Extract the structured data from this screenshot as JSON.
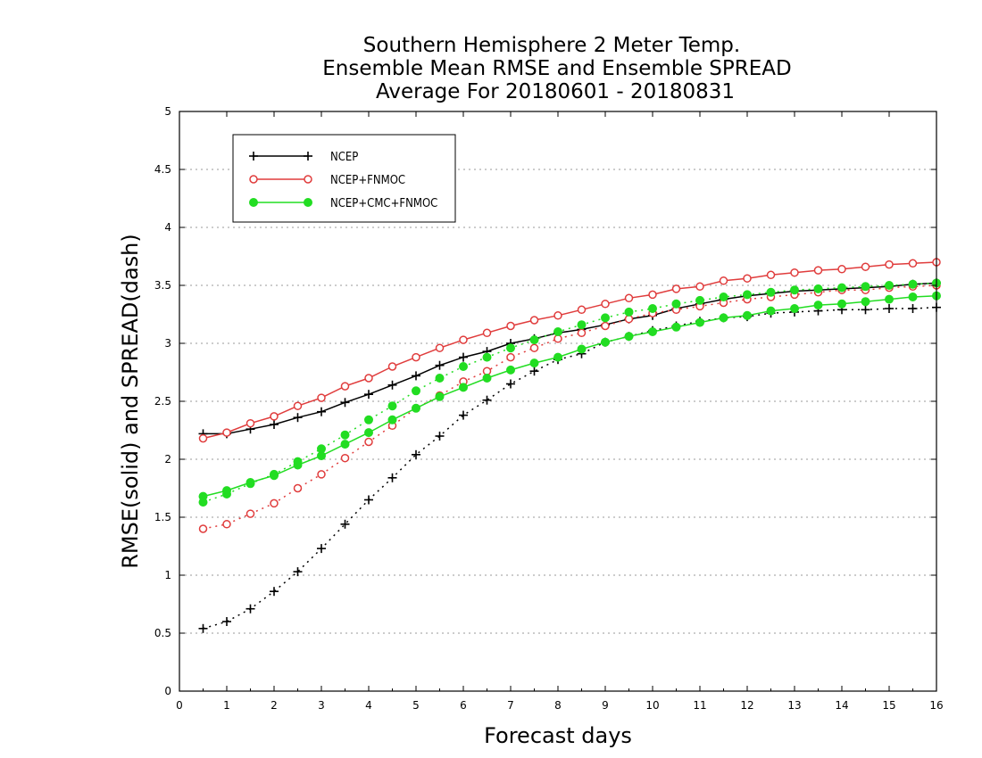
{
  "chart_data": {
    "type": "line",
    "title": [
      "Southern Hemisphere 2 Meter Temp.",
      "Ensemble Mean RMSE and Ensemble SPREAD",
      "Average For 20180601 - 20180831"
    ],
    "xlabel": "Forecast days",
    "ylabel": "RMSE(solid) and SPREAD(dash)",
    "xlim": [
      0,
      16
    ],
    "ylim": [
      0,
      5
    ],
    "x_ticks": [
      "0",
      "1",
      "2",
      "3",
      "4",
      "5",
      "6",
      "7",
      "8",
      "9",
      "10",
      "11",
      "12",
      "13",
      "14",
      "15",
      "16"
    ],
    "y_ticks": [
      "0",
      "0.5",
      "1",
      "1.5",
      "2",
      "2.5",
      "3",
      "3.5",
      "4",
      "4.5",
      "5"
    ],
    "grid": "horizontal dotted",
    "legend_placement": "top-left",
    "x": [
      0.5,
      1,
      1.5,
      2,
      2.5,
      3,
      3.5,
      4,
      4.5,
      5,
      5.5,
      6,
      6.5,
      7,
      7.5,
      8,
      8.5,
      9,
      9.5,
      10,
      10.5,
      11,
      11.5,
      12,
      12.5,
      13,
      13.5,
      14,
      14.5,
      15,
      15.5,
      16
    ],
    "series": [
      {
        "name": "NCEP",
        "color": "#000000",
        "marker": "plus",
        "rmse": [
          2.22,
          2.22,
          2.26,
          2.3,
          2.36,
          2.41,
          2.49,
          2.56,
          2.64,
          2.72,
          2.81,
          2.88,
          2.93,
          3.0,
          3.04,
          3.09,
          3.12,
          3.16,
          3.21,
          3.24,
          3.3,
          3.34,
          3.38,
          3.41,
          3.43,
          3.45,
          3.46,
          3.47,
          3.48,
          3.49,
          3.51,
          3.52
        ],
        "spread": [
          0.54,
          0.6,
          0.71,
          0.86,
          1.03,
          1.23,
          1.44,
          1.65,
          1.84,
          2.04,
          2.2,
          2.38,
          2.51,
          2.65,
          2.76,
          2.86,
          2.91,
          3.01,
          3.06,
          3.11,
          3.15,
          3.19,
          3.22,
          3.23,
          3.26,
          3.27,
          3.28,
          3.29,
          3.29,
          3.3,
          3.3,
          3.31
        ]
      },
      {
        "name": "NCEP+FNMOC",
        "color": "#e03c3c",
        "marker": "open-circle",
        "rmse": [
          2.18,
          2.23,
          2.31,
          2.37,
          2.46,
          2.53,
          2.63,
          2.7,
          2.8,
          2.88,
          2.96,
          3.03,
          3.09,
          3.15,
          3.2,
          3.24,
          3.29,
          3.34,
          3.39,
          3.42,
          3.47,
          3.49,
          3.54,
          3.56,
          3.59,
          3.61,
          3.63,
          3.64,
          3.66,
          3.68,
          3.69,
          3.7
        ],
        "spread": [
          1.4,
          1.44,
          1.53,
          1.62,
          1.75,
          1.87,
          2.01,
          2.15,
          2.29,
          2.44,
          2.55,
          2.67,
          2.76,
          2.88,
          2.96,
          3.04,
          3.09,
          3.15,
          3.21,
          3.26,
          3.29,
          3.32,
          3.35,
          3.38,
          3.4,
          3.42,
          3.44,
          3.46,
          3.46,
          3.48,
          3.49,
          3.5
        ]
      },
      {
        "name": "NCEP+CMC+FNMOC",
        "color": "#22dd22",
        "marker": "filled-circle",
        "rmse": [
          1.68,
          1.73,
          1.8,
          1.86,
          1.95,
          2.03,
          2.13,
          2.23,
          2.34,
          2.44,
          2.54,
          2.62,
          2.7,
          2.77,
          2.83,
          2.88,
          2.95,
          3.01,
          3.06,
          3.1,
          3.14,
          3.18,
          3.22,
          3.24,
          3.28,
          3.3,
          3.33,
          3.34,
          3.36,
          3.38,
          3.4,
          3.41
        ],
        "spread": [
          1.63,
          1.7,
          1.79,
          1.87,
          1.98,
          2.09,
          2.21,
          2.34,
          2.46,
          2.59,
          2.7,
          2.8,
          2.88,
          2.96,
          3.03,
          3.1,
          3.16,
          3.22,
          3.27,
          3.3,
          3.34,
          3.37,
          3.4,
          3.42,
          3.44,
          3.46,
          3.47,
          3.48,
          3.49,
          3.5,
          3.51,
          3.52
        ]
      }
    ]
  }
}
